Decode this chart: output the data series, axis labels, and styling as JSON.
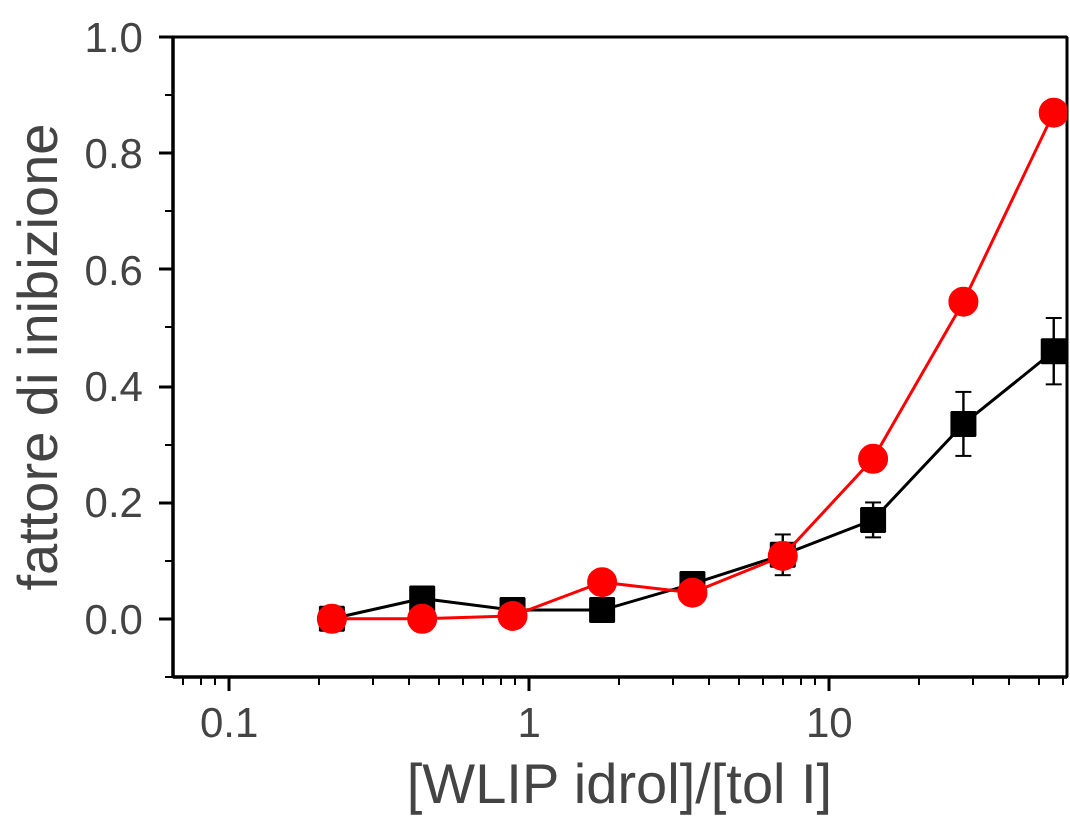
{
  "chart_data": {
    "type": "line",
    "xlabel": "[WLIP idrol]/[tol I]",
    "ylabel": "fattore di inibizione",
    "log": "x",
    "xlim": [
      0.065,
      62
    ],
    "xticks": [
      0.1,
      1,
      10
    ],
    "ylim": [
      -0.1,
      1.0
    ],
    "yticks": [
      {
        "value": 0,
        "label": "0.0"
      },
      0.2,
      0.4,
      0.6,
      0.8,
      {
        "value": 1,
        "label": "1.0"
      }
    ],
    "x": [
      0.22,
      0.44,
      0.88,
      1.75,
      3.5,
      7,
      14,
      28,
      56
    ],
    "grid": false,
    "series": [
      {
        "color": "#000000",
        "marker": "square",
        "values": [
          0,
          0.035,
          0.015,
          0.015,
          0.06,
          0.11,
          0.17,
          0.335,
          0.46
        ],
        "errors": [
          null,
          null,
          null,
          null,
          0.015,
          0.035,
          0.03,
          0.055,
          0.057
        ]
      },
      {
        "color": "#ff0000",
        "marker": "circle",
        "values": [
          0,
          0,
          0.005,
          0.063,
          0.045,
          0.108,
          0.275,
          0.545,
          0.87
        ]
      }
    ]
  }
}
